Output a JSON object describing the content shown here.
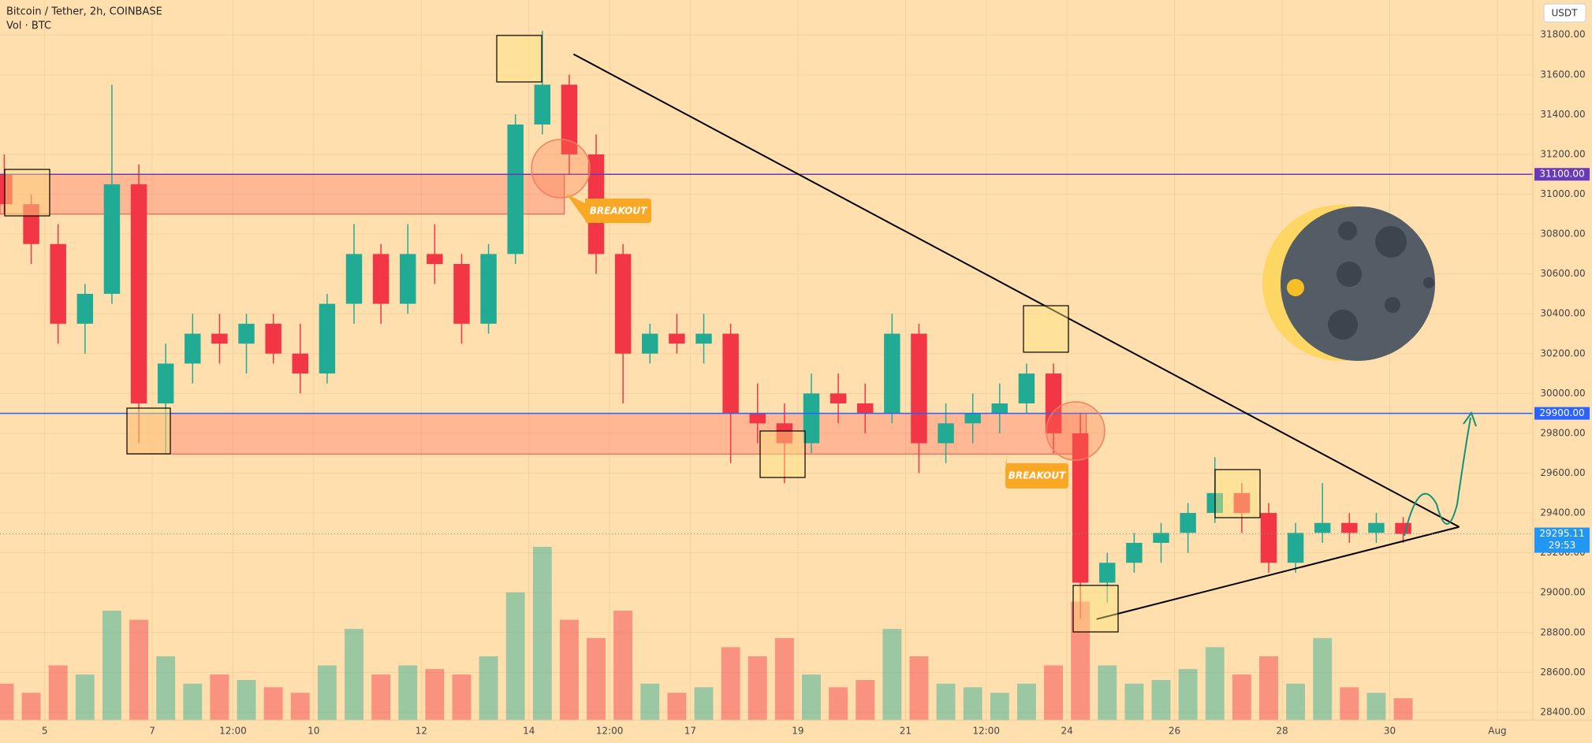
{
  "header": {
    "title": "Bitcoin / Tether, 2h, COINBASE",
    "volume_label": "Vol · BTC",
    "currency_button": "USDT"
  },
  "chart_data": {
    "type": "candlestick",
    "x": [
      4.25,
      4.75,
      5.25,
      5.75,
      6.25,
      6.75,
      7.25,
      7.75,
      8.25,
      8.75,
      9.25,
      9.75,
      10.25,
      10.75,
      11.25,
      11.75,
      12.25,
      12.75,
      13.25,
      13.75,
      14.25,
      14.75,
      15.25,
      15.75,
      16.25,
      16.75,
      17.25,
      17.75,
      18.25,
      18.75,
      19.25,
      19.75,
      20.25,
      20.75,
      21.25,
      21.75,
      22.25,
      22.75,
      23.25,
      23.75,
      24.25,
      24.75,
      25.25,
      25.75,
      26.25,
      26.75,
      27.25,
      27.75,
      28.25,
      28.75,
      29.25,
      29.75,
      30.25
    ],
    "open": [
      31100,
      30950,
      30750,
      30350,
      30500,
      31050,
      29950,
      30150,
      30300,
      30250,
      30350,
      30200,
      30100,
      30450,
      30700,
      30450,
      30700,
      30650,
      30350,
      30700,
      31350,
      31550,
      31200,
      30700,
      30200,
      30300,
      30250,
      30300,
      29900,
      29850,
      29750,
      30000,
      29950,
      29900,
      30300,
      29750,
      29850,
      29900,
      29950,
      30100,
      29800,
      29050,
      29150,
      29250,
      29300,
      29400,
      29500,
      29400,
      29150,
      29300,
      29350,
      29300,
      29350
    ],
    "high": [
      31200,
      31000,
      30850,
      30550,
      31550,
      31150,
      30250,
      30400,
      30400,
      30400,
      30400,
      30350,
      30500,
      30850,
      30750,
      30850,
      30850,
      30700,
      30750,
      31400,
      31820,
      31600,
      31300,
      30750,
      30350,
      30400,
      30400,
      30350,
      30050,
      29950,
      30100,
      30100,
      30050,
      30400,
      30350,
      29950,
      30000,
      30050,
      30150,
      30150,
      29900,
      29200,
      29300,
      29350,
      29450,
      29680,
      29550,
      29450,
      29350,
      29550,
      29400,
      29400,
      29380
    ],
    "low": [
      30900,
      30650,
      30250,
      30200,
      30450,
      29750,
      29700,
      30050,
      30150,
      30100,
      30150,
      30000,
      30050,
      30350,
      30350,
      30400,
      30550,
      30250,
      30300,
      30650,
      31300,
      31100,
      30600,
      29950,
      30150,
      30200,
      30150,
      29650,
      29750,
      29550,
      29700,
      29850,
      29800,
      29850,
      29600,
      29650,
      29750,
      29800,
      29900,
      29700,
      28870,
      28950,
      29100,
      29150,
      29200,
      29350,
      29300,
      29100,
      29100,
      29250,
      29250,
      29250,
      29250
    ],
    "close": [
      30950,
      30750,
      30350,
      30500,
      31050,
      29950,
      30150,
      30300,
      30250,
      30350,
      30200,
      30100,
      30450,
      30700,
      30450,
      30700,
      30650,
      30350,
      30700,
      31350,
      31550,
      31200,
      30700,
      30200,
      30300,
      30250,
      30300,
      29900,
      29850,
      29750,
      30000,
      29950,
      29900,
      30300,
      29750,
      29850,
      29900,
      29950,
      30100,
      29800,
      29050,
      29150,
      29250,
      29300,
      29400,
      29500,
      29400,
      29150,
      29300,
      29350,
      29300,
      29350,
      29295.11
    ],
    "volume": [
      20,
      15,
      30,
      25,
      60,
      55,
      35,
      20,
      25,
      22,
      18,
      15,
      30,
      50,
      25,
      30,
      28,
      25,
      35,
      70,
      95,
      55,
      45,
      60,
      20,
      15,
      18,
      40,
      35,
      45,
      25,
      18,
      22,
      50,
      35,
      20,
      18,
      15,
      20,
      30,
      65,
      30,
      20,
      22,
      28,
      40,
      25,
      35,
      20,
      45,
      18,
      15,
      12
    ],
    "up_color": "#22ab94",
    "down_color": "#f23645",
    "xlim": [
      4.17,
      32.66
    ],
    "xticks": [
      {
        "value": 5,
        "label": "5"
      },
      {
        "value": 7,
        "label": "7"
      },
      {
        "value": 8.5,
        "label": "12:00"
      },
      {
        "value": 10,
        "label": "10"
      },
      {
        "value": 12,
        "label": "12"
      },
      {
        "value": 14,
        "label": "14"
      },
      {
        "value": 15.5,
        "label": "12:00"
      },
      {
        "value": 17,
        "label": "17"
      },
      {
        "value": 19,
        "label": "19"
      },
      {
        "value": 21,
        "label": "21"
      },
      {
        "value": 22.5,
        "label": "12:00"
      },
      {
        "value": 24,
        "label": "24"
      },
      {
        "value": 26,
        "label": "26"
      },
      {
        "value": 28,
        "label": "28"
      },
      {
        "value": 30,
        "label": "30"
      },
      {
        "value": 32,
        "label": "Aug"
      }
    ],
    "ylim": [
      28360,
      31975
    ],
    "yticks": [
      {
        "value": 28400,
        "label": "28400.00"
      },
      {
        "value": 28600,
        "label": "28600.00"
      },
      {
        "value": 28800,
        "label": "28800.00"
      },
      {
        "value": 29000,
        "label": "29000.00"
      },
      {
        "value": 29200,
        "label": "29200.00"
      },
      {
        "value": 29400,
        "label": "29400.00"
      },
      {
        "value": 29600,
        "label": "29600.00"
      },
      {
        "value": 29800,
        "label": "29800.00"
      },
      {
        "value": 30000,
        "label": "30000.00"
      },
      {
        "value": 30200,
        "label": "30200.00"
      },
      {
        "value": 30400,
        "label": "30400.00"
      },
      {
        "value": 30600,
        "label": "30600.00"
      },
      {
        "value": 30800,
        "label": "30800.00"
      },
      {
        "value": 31000,
        "label": "31000.00"
      },
      {
        "value": 31200,
        "label": "31200.00"
      },
      {
        "value": 31400,
        "label": "31400.00"
      },
      {
        "value": 31600,
        "label": "31600.00"
      },
      {
        "value": 31800,
        "label": "31800.00"
      }
    ],
    "grid": true,
    "levels": [
      {
        "value": 31100,
        "label": "31100.00",
        "color": "#673ab7"
      },
      {
        "value": 29900,
        "label": "29900.00",
        "color": "#2962ff"
      }
    ],
    "zones": [
      {
        "x": [
          4.17,
          14.66
        ],
        "y": [
          30900,
          31100
        ]
      },
      {
        "x": [
          6.53,
          24.36
        ],
        "y": [
          29696,
          29900
        ]
      }
    ],
    "trendlines": [
      {
        "x": [
          14.83,
          31.29
        ],
        "y": [
          31703,
          29330
        ]
      },
      {
        "x": [
          24.55,
          31.29
        ],
        "y": [
          28867,
          29330
        ]
      }
    ],
    "last_price": 29295.11,
    "countdown": "29:53",
    "annotations": [
      "BREAKOUT",
      "BREAKOUT"
    ]
  }
}
